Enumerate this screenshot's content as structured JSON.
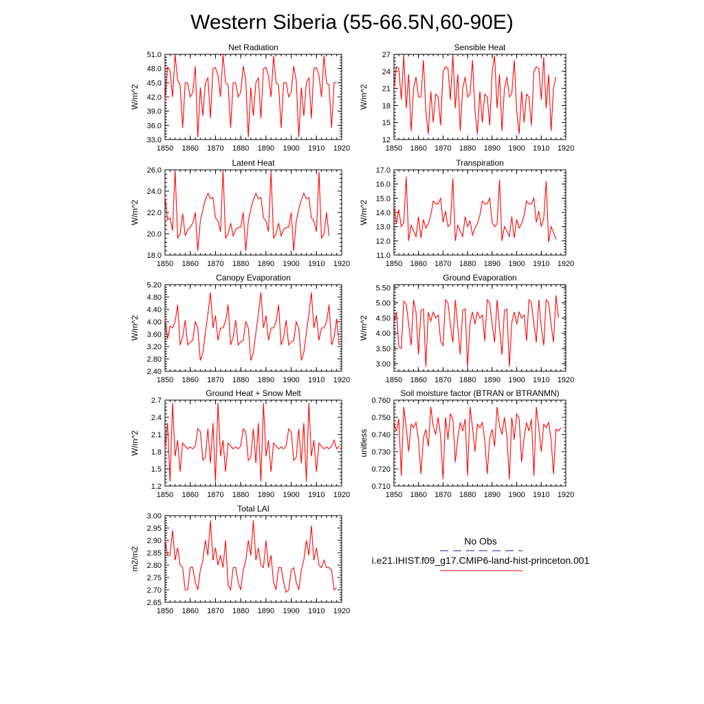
{
  "page": {
    "title": "Western Siberia (55-66.5N,60-90E)"
  },
  "legend": {
    "obs_label": "No Obs",
    "obs_color": "#1a1a8c",
    "model_label": "i.e21.IHIST.f09_g17.CMIP6-land-hist-princeton.001",
    "model_color": "#ff0000"
  },
  "chart_data": [
    {
      "type": "line",
      "title": "Net Radiation",
      "ylabel": "W/m^2",
      "xlim": [
        1850,
        1920
      ],
      "ylim": [
        33.0,
        51.0
      ],
      "xticks": [
        1850,
        1860,
        1870,
        1880,
        1890,
        1900,
        1910,
        1920
      ],
      "yticks": [
        "33.0",
        "36.0",
        "39.0",
        "42.0",
        "45.0",
        "48.0",
        "51.0"
      ],
      "x_start": 1850,
      "series": [
        {
          "color": "#ff0000",
          "values": [
            41.0,
            48.3,
            47.5,
            42.0,
            51.0,
            45.5,
            44.5,
            35.5,
            45.0,
            45.0,
            42.0,
            43.0,
            48.5,
            33.5,
            44.0,
            38.0,
            45.0,
            46.0,
            37.5,
            48.0,
            48.2,
            46.5,
            42.0,
            51.0,
            45.0,
            44.5,
            35.5,
            45.0,
            45.0,
            42.0,
            43.0,
            48.5,
            45.5,
            33.5,
            44.0,
            38.0,
            45.0,
            46.0,
            37.5,
            48.0,
            48.2,
            46.5,
            42.0,
            50.7,
            45.0,
            44.5,
            35.5,
            45.0,
            45.0,
            42.0,
            43.0,
            48.5,
            45.5,
            33.5,
            44.0,
            38.0,
            45.0,
            46.0,
            37.5,
            48.0,
            48.2,
            46.5,
            42.0,
            50.7,
            45.0,
            44.5,
            35.5,
            45.0,
            45.0
          ]
        }
      ]
    },
    {
      "type": "line",
      "title": "Sensible Heat",
      "ylabel": "W/m^2",
      "xlim": [
        1850,
        1920
      ],
      "ylim": [
        12,
        27
      ],
      "xticks": [
        1850,
        1860,
        1870,
        1880,
        1890,
        1900,
        1910,
        1920
      ],
      "yticks": [
        "12",
        "15",
        "18",
        "21",
        "24",
        "27"
      ],
      "x_start": 1850,
      "series": [
        {
          "color": "#ff0000",
          "values": [
            21.0,
            24.8,
            24.5,
            19.0,
            26.8,
            17.5,
            23.5,
            13.5,
            21.0,
            23.0,
            19.5,
            19.5,
            26.0,
            17.0,
            13.0,
            20.5,
            15.0,
            20.0,
            19.5,
            14.5,
            24.0,
            24.8,
            24.5,
            19.0,
            26.8,
            17.5,
            23.5,
            13.5,
            21.0,
            23.0,
            19.5,
            20.0,
            26.0,
            17.0,
            13.0,
            20.5,
            15.0,
            20.0,
            19.5,
            14.5,
            24.0,
            26.8,
            17.5,
            23.5,
            13.5,
            21.0,
            23.0,
            19.5,
            20.0,
            26.0,
            17.0,
            13.0,
            20.5,
            15.0,
            20.0,
            19.5,
            14.5,
            24.0,
            24.8,
            24.5,
            19.0,
            26.5,
            17.5,
            23.5,
            13.5,
            21.0,
            23.0
          ]
        }
      ]
    },
    {
      "type": "line",
      "title": "Latent Heat",
      "ylabel": "W/m^2",
      "xlim": [
        1850,
        1920
      ],
      "ylim": [
        18.0,
        26.0
      ],
      "xticks": [
        1850,
        1860,
        1870,
        1880,
        1890,
        1900,
        1910,
        1920
      ],
      "yticks": [
        "18.0",
        "20.0",
        "22.0",
        "24.0",
        "26.0"
      ],
      "x_start": 1850,
      "series": [
        {
          "color": "#ff0000",
          "values": [
            23.5,
            21.3,
            21.5,
            20.3,
            26.0,
            19.6,
            20.0,
            21.9,
            19.8,
            20.4,
            20.6,
            21.0,
            22.0,
            18.4,
            21.2,
            22.3,
            23.2,
            23.8,
            23.3,
            23.4,
            21.5,
            21.2,
            20.2,
            26.0,
            19.6,
            20.0,
            21.0,
            19.8,
            20.4,
            20.6,
            20.6,
            22.0,
            18.4,
            21.2,
            22.3,
            23.2,
            23.8,
            23.3,
            23.4,
            21.5,
            21.2,
            20.2,
            25.8,
            19.6,
            20.0,
            21.0,
            19.8,
            20.4,
            20.6,
            20.6,
            22.0,
            18.4,
            21.2,
            22.3,
            23.2,
            23.8,
            23.3,
            23.4,
            21.5,
            21.2,
            20.2,
            25.8,
            19.6,
            20.0,
            22.0,
            19.8
          ]
        }
      ]
    },
    {
      "type": "line",
      "title": "Transpiration",
      "ylabel": "W/m^2",
      "xlim": [
        1850,
        1920
      ],
      "ylim": [
        11.0,
        17.0
      ],
      "xticks": [
        1850,
        1860,
        1870,
        1880,
        1890,
        1900,
        1910,
        1920
      ],
      "yticks": [
        "11.0",
        "12.0",
        "13.0",
        "14.0",
        "15.0",
        "16.0",
        "17.0"
      ],
      "x_start": 1850,
      "series": [
        {
          "color": "#ff0000",
          "values": [
            14.5,
            13.2,
            14.2,
            13.0,
            13.3,
            16.5,
            12.0,
            13.1,
            12.7,
            12.3,
            13.7,
            12.2,
            13.5,
            12.9,
            13.2,
            13.8,
            14.8,
            14.6,
            14.6,
            15.0,
            13.3,
            14.1,
            13.0,
            13.2,
            16.4,
            12.0,
            13.1,
            12.7,
            12.3,
            13.7,
            13.0,
            13.4,
            12.4,
            12.9,
            13.2,
            13.8,
            14.8,
            14.6,
            14.6,
            15.0,
            13.3,
            13.0,
            13.2,
            16.3,
            12.0,
            13.0,
            12.7,
            12.3,
            13.7,
            12.2,
            13.5,
            12.9,
            13.2,
            13.8,
            14.8,
            14.6,
            14.6,
            15.0,
            13.3,
            14.1,
            13.0,
            13.6,
            16.2,
            11.9,
            13.0,
            12.6,
            12.1
          ]
        }
      ]
    },
    {
      "type": "line",
      "title": "Canopy Evaporation",
      "ylabel": "W/m^2",
      "xlim": [
        1850,
        1920
      ],
      "ylim": [
        2.4,
        5.2
      ],
      "xticks": [
        1850,
        1860,
        1870,
        1880,
        1890,
        1900,
        1910,
        1920
      ],
      "yticks": [
        "2.40",
        "2.80",
        "3.20",
        "3.60",
        "4.00",
        "4.40",
        "4.80",
        "5.20"
      ],
      "x_start": 1850,
      "series": [
        {
          "color": "#ff0000",
          "values": [
            4.1,
            3.45,
            3.85,
            3.8,
            4.0,
            4.55,
            3.25,
            3.5,
            4.05,
            3.25,
            3.35,
            3.4,
            4.0,
            3.8,
            2.75,
            3.0,
            3.65,
            4.25,
            4.95,
            3.8,
            4.2,
            3.4,
            3.8,
            3.8,
            4.0,
            4.55,
            3.25,
            3.5,
            4.05,
            3.25,
            3.35,
            3.4,
            4.0,
            3.8,
            2.75,
            3.0,
            3.65,
            4.25,
            4.95,
            3.8,
            4.2,
            3.4,
            3.8,
            3.8,
            4.0,
            4.55,
            3.25,
            3.5,
            4.05,
            3.25,
            3.35,
            3.4,
            4.0,
            3.8,
            2.75,
            3.0,
            3.65,
            4.25,
            4.95,
            3.8,
            4.2,
            3.4,
            3.8,
            3.8,
            4.0,
            4.55,
            3.25,
            3.5,
            4.1,
            3.25
          ]
        }
      ]
    },
    {
      "type": "line",
      "title": "Ground Evaporation",
      "ylabel": "W/m^2",
      "xlim": [
        1850,
        1920
      ],
      "ylim": [
        2.75,
        5.6
      ],
      "xticks": [
        1850,
        1860,
        1870,
        1880,
        1890,
        1900,
        1910,
        1920
      ],
      "yticks": [
        "3.00",
        "3.50",
        "4.00",
        "4.50",
        "5.00",
        "5.50"
      ],
      "x_start": 1850,
      "series": [
        {
          "color": "#ff0000",
          "values": [
            4.35,
            4.7,
            3.55,
            3.5,
            5.05,
            4.95,
            4.3,
            3.6,
            5.1,
            4.7,
            3.3,
            4.75,
            4.8,
            2.9,
            4.7,
            4.4,
            4.7,
            4.5,
            4.6,
            3.75,
            3.6,
            5.1,
            5.0,
            4.3,
            3.7,
            5.1,
            4.2,
            3.3,
            4.75,
            4.8,
            2.9,
            4.35,
            4.7,
            4.3,
            4.7,
            4.5,
            4.6,
            3.75,
            5.1,
            5.0,
            4.3,
            3.7,
            5.1,
            4.2,
            3.3,
            4.75,
            4.8,
            2.9,
            4.35,
            4.7,
            4.3,
            4.7,
            4.5,
            4.6,
            3.75,
            5.1,
            5.0,
            4.3,
            3.7,
            5.1,
            4.2,
            3.6,
            5.1,
            5.0,
            4.3,
            3.7,
            5.25,
            4.5
          ]
        }
      ]
    },
    {
      "type": "line",
      "title": "Ground Heat + Snow Melt",
      "ylabel": "W/m^2",
      "xlim": [
        1850,
        1920
      ],
      "ylim": [
        1.2,
        2.7
      ],
      "xticks": [
        1850,
        1860,
        1870,
        1880,
        1890,
        1900,
        1910,
        1920
      ],
      "yticks": [
        "1.2",
        "1.5",
        "1.8",
        "2.1",
        "2.4",
        "2.7"
      ],
      "x_start": 1850,
      "series": [
        {
          "color": "#ff0000",
          "values": [
            1.85,
            2.3,
            1.28,
            2.65,
            1.72,
            2.0,
            1.45,
            1.95,
            1.9,
            1.85,
            1.88,
            1.85,
            1.9,
            2.2,
            2.15,
            1.65,
            1.7,
            2.2,
            1.6,
            2.3,
            1.28,
            2.65,
            1.72,
            2.0,
            1.45,
            1.95,
            1.9,
            1.85,
            1.88,
            1.85,
            1.9,
            2.2,
            2.15,
            1.65,
            1.7,
            2.2,
            1.6,
            2.3,
            1.28,
            2.65,
            1.72,
            2.0,
            1.45,
            1.95,
            1.9,
            1.85,
            1.88,
            1.85,
            1.9,
            2.2,
            2.15,
            1.65,
            1.7,
            2.2,
            1.6,
            2.3,
            1.28,
            2.65,
            1.72,
            2.0,
            1.45,
            1.95,
            1.9,
            1.85,
            1.88,
            1.85,
            1.9,
            2.0,
            1.85,
            1.9
          ]
        }
      ]
    },
    {
      "type": "line",
      "title": "Soil moisture factor (BTRAN or BTRANMN)",
      "ylabel": "unitless",
      "xlim": [
        1850,
        1920
      ],
      "ylim": [
        0.71,
        0.76
      ],
      "xticks": [
        1850,
        1860,
        1870,
        1880,
        1890,
        1900,
        1910,
        1920
      ],
      "yticks": [
        "0.710",
        "0.720",
        "0.730",
        "0.740",
        "0.750",
        "0.760"
      ],
      "x_start": 1850,
      "series": [
        {
          "color": "#ff0000",
          "values": [
            0.747,
            0.742,
            0.749,
            0.716,
            0.756,
            0.744,
            0.73,
            0.746,
            0.744,
            0.747,
            0.737,
            0.717,
            0.738,
            0.743,
            0.733,
            0.756,
            0.745,
            0.74,
            0.75,
            0.739,
            0.714,
            0.75,
            0.737,
            0.752,
            0.749,
            0.724,
            0.738,
            0.747,
            0.742,
            0.749,
            0.716,
            0.756,
            0.744,
            0.73,
            0.746,
            0.744,
            0.747,
            0.737,
            0.717,
            0.738,
            0.743,
            0.733,
            0.756,
            0.745,
            0.74,
            0.75,
            0.739,
            0.714,
            0.75,
            0.737,
            0.752,
            0.749,
            0.724,
            0.738,
            0.747,
            0.742,
            0.749,
            0.716,
            0.756,
            0.744,
            0.73,
            0.746,
            0.744,
            0.747,
            0.737,
            0.717,
            0.743,
            0.742,
            0.744
          ]
        }
      ]
    },
    {
      "type": "line",
      "title": "Total LAI",
      "ylabel": "m2/m2",
      "xlim": [
        1850,
        1920
      ],
      "ylim": [
        2.65,
        3.0
      ],
      "xticks": [
        1850,
        1860,
        1870,
        1880,
        1890,
        1900,
        1910,
        1920
      ],
      "yticks": [
        "2.65",
        "2.70",
        "2.75",
        "2.80",
        "2.85",
        "2.90",
        "2.95",
        "3.00"
      ],
      "x_start": 1850,
      "series": [
        {
          "color": "#ff0000",
          "values": [
            2.9,
            2.84,
            2.84,
            2.94,
            2.82,
            2.87,
            2.8,
            2.79,
            2.7,
            2.7,
            2.79,
            2.79,
            2.73,
            2.7,
            2.78,
            2.82,
            2.9,
            2.84,
            2.98,
            2.82,
            2.87,
            2.8,
            2.84,
            2.79,
            2.9,
            2.72,
            2.7,
            2.79,
            2.79,
            2.73,
            2.7,
            2.78,
            2.82,
            2.9,
            2.84,
            2.98,
            2.82,
            2.87,
            2.8,
            2.79,
            2.9,
            2.79,
            2.84,
            2.73,
            2.7,
            2.79,
            2.79,
            2.73,
            2.69,
            2.7,
            2.78,
            2.79,
            2.73,
            2.7,
            2.78,
            2.82,
            2.9,
            2.84,
            2.96,
            2.82,
            2.87,
            2.8,
            2.79,
            2.82,
            2.79,
            2.79,
            2.78,
            2.7,
            2.71
          ]
        }
      ]
    }
  ]
}
